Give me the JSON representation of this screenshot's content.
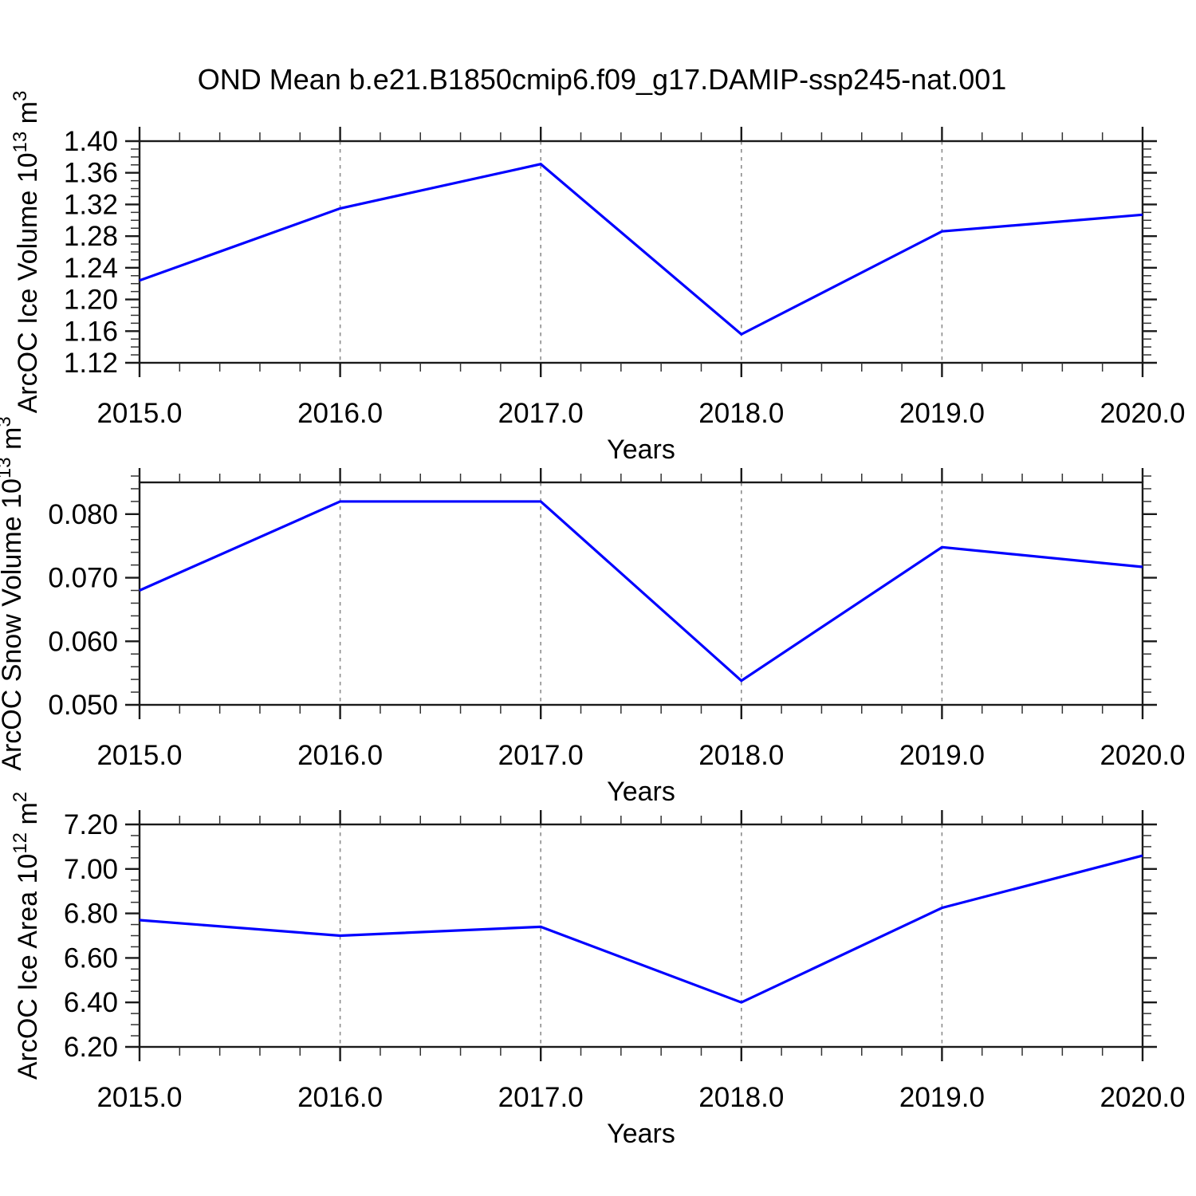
{
  "title": "OND Mean b.e21.B1850cmip6.f09_g17.DAMIP-ssp245-nat.001",
  "colors": {
    "line": "#0000ff",
    "grid": "#8c8c8c",
    "axis": "#1a1a1a",
    "text": "#000000",
    "background": "#ffffff"
  },
  "x_axis": {
    "label": "Years",
    "range": [
      2015,
      2020
    ],
    "ticks": [
      2015,
      2016,
      2017,
      2018,
      2019,
      2020
    ],
    "tick_labels": [
      "2015.0",
      "2016.0",
      "2017.0",
      "2018.0",
      "2019.0",
      "2020.0"
    ],
    "minor_step": 0.2,
    "gridlines": [
      2016,
      2017,
      2018,
      2019
    ]
  },
  "chart_data": [
    {
      "type": "line",
      "name": "arcoc-ice-volume",
      "xlabel": "Years",
      "ylabel": "ArcOC Ice Volume 10^13 m^3",
      "ylim": [
        1.12,
        1.4
      ],
      "yticks": [
        1.12,
        1.16,
        1.2,
        1.24,
        1.28,
        1.32,
        1.36,
        1.4
      ],
      "ytick_labels": [
        "1.12",
        "1.16",
        "1.20",
        "1.24",
        "1.28",
        "1.32",
        "1.36",
        "1.40"
      ],
      "y_minor_step": 0.01,
      "x": [
        2015,
        2016,
        2017,
        2018,
        2019,
        2020
      ],
      "values": [
        1.224,
        1.315,
        1.371,
        1.156,
        1.286,
        1.307
      ],
      "grid": "vertical-dashed",
      "legend": "none"
    },
    {
      "type": "line",
      "name": "arcoc-snow-volume",
      "xlabel": "Years",
      "ylabel": "ArcOC Snow Volume 10^13 m^3",
      "ylim": [
        0.05,
        0.085
      ],
      "yticks": [
        0.05,
        0.06,
        0.07,
        0.08
      ],
      "ytick_labels": [
        "0.050",
        "0.060",
        "0.070",
        "0.080"
      ],
      "y_minor_step": 0.002,
      "x": [
        2015,
        2016,
        2017,
        2018,
        2019,
        2020
      ],
      "values": [
        0.068,
        0.082,
        0.082,
        0.0538,
        0.0748,
        0.0717
      ],
      "grid": "vertical-dashed",
      "legend": "none"
    },
    {
      "type": "line",
      "name": "arcoc-ice-area",
      "xlabel": "Years",
      "ylabel": "ArcOC Ice Area 10^12 m^2",
      "ylim": [
        6.2,
        7.2
      ],
      "yticks": [
        6.2,
        6.4,
        6.6,
        6.8,
        7.0,
        7.2
      ],
      "ytick_labels": [
        "6.20",
        "6.40",
        "6.60",
        "6.80",
        "7.00",
        "7.20"
      ],
      "y_minor_step": 0.05,
      "x": [
        2015,
        2016,
        2017,
        2018,
        2019,
        2020
      ],
      "values": [
        6.77,
        6.7,
        6.74,
        6.4,
        6.825,
        7.06
      ],
      "grid": "vertical-dashed",
      "legend": "none"
    }
  ]
}
